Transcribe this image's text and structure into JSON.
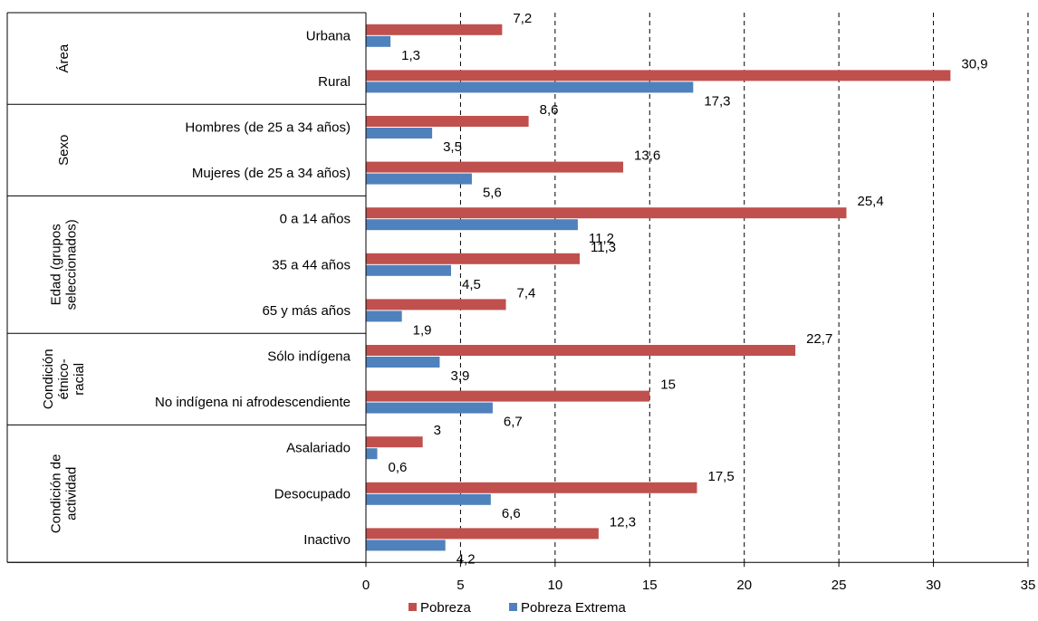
{
  "chart_data": {
    "type": "bar",
    "orientation": "horizontal",
    "grid": true,
    "legend_position": "bottom",
    "xlim": [
      0,
      35
    ],
    "x_ticks": [
      0,
      5,
      10,
      15,
      20,
      25,
      30,
      35
    ],
    "x_tick_labels": [
      "0",
      "5",
      "10",
      "15",
      "20",
      "25",
      "30",
      "35"
    ],
    "groups": [
      {
        "label": "Área",
        "categories": [
          "Urbana",
          "Rural"
        ]
      },
      {
        "label": "Sexo",
        "categories": [
          "Hombres (de 25 a 34 años)",
          "Mujeres (de 25 a 34 años)"
        ]
      },
      {
        "label": "Edad (grupos seleccionados)",
        "categories": [
          "0 a 14 años",
          "35 a 44 años",
          "65 y más años"
        ]
      },
      {
        "label": "Condición étnico-racial",
        "categories": [
          "Sólo indígena",
          "No indígena ni afrodescendiente"
        ]
      },
      {
        "label": "Condición de actividad",
        "categories": [
          "Asalariado",
          "Desocupado",
          "Inactivo"
        ]
      }
    ],
    "categories": [
      "Urbana",
      "Rural",
      "Hombres (de 25 a 34 años)",
      "Mujeres (de 25 a 34 años)",
      "0 a 14 años",
      "35 a 44 años",
      "65 y más años",
      "Sólo indígena",
      "No indígena ni afrodescendiente",
      "Asalariado",
      "Desocupado",
      "Inactivo"
    ],
    "series": [
      {
        "name": "Pobreza",
        "color": "#c0504d",
        "values": [
          7.2,
          30.9,
          8.6,
          13.6,
          25.4,
          11.3,
          7.4,
          22.7,
          15,
          3,
          17.5,
          12.3
        ],
        "labels": [
          "7,2",
          "30,9",
          "8,6",
          "13,6",
          "25,4",
          "11,3",
          "7,4",
          "22,7",
          "15",
          "3",
          "17,5",
          "12,3"
        ]
      },
      {
        "name": "Pobreza Extrema",
        "color": "#4f81bd",
        "values": [
          1.3,
          17.3,
          3.5,
          5.6,
          11.2,
          4.5,
          1.9,
          3.9,
          6.7,
          0.6,
          6.6,
          4.2
        ],
        "labels": [
          "1,3",
          "17,3",
          "3,5",
          "5,6",
          "11,2",
          "4,5",
          "1,9",
          "3,9",
          "6,7",
          "0,6",
          "6,6",
          "4,2"
        ]
      }
    ]
  }
}
